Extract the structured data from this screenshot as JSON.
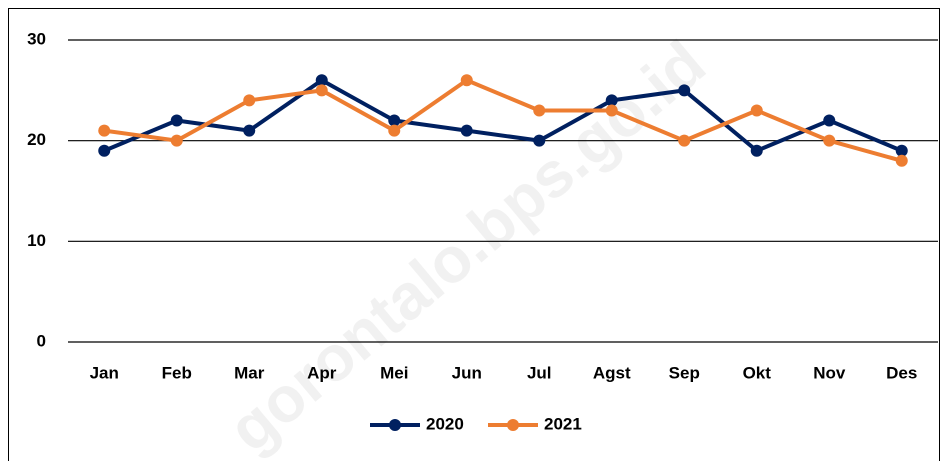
{
  "chart_data": {
    "type": "line",
    "categories": [
      "Jan",
      "Feb",
      "Mar",
      "Apr",
      "Mei",
      "Jun",
      "Jul",
      "Agst",
      "Sep",
      "Okt",
      "Nov",
      "Des"
    ],
    "series": [
      {
        "name": "2020",
        "color": "#002060",
        "values": [
          19,
          22,
          21,
          26,
          22,
          21,
          20,
          24,
          25,
          19,
          22,
          19
        ]
      },
      {
        "name": "2021",
        "color": "#ED7D31",
        "values": [
          21,
          20,
          24,
          25,
          21,
          26,
          23,
          23,
          20,
          23,
          20,
          18
        ]
      }
    ],
    "ylim": [
      0,
      30
    ],
    "yticks": [
      0,
      10,
      20,
      30
    ],
    "grid": true,
    "legend": "bottom",
    "watermark": "gorontalo.bps.go.id"
  }
}
